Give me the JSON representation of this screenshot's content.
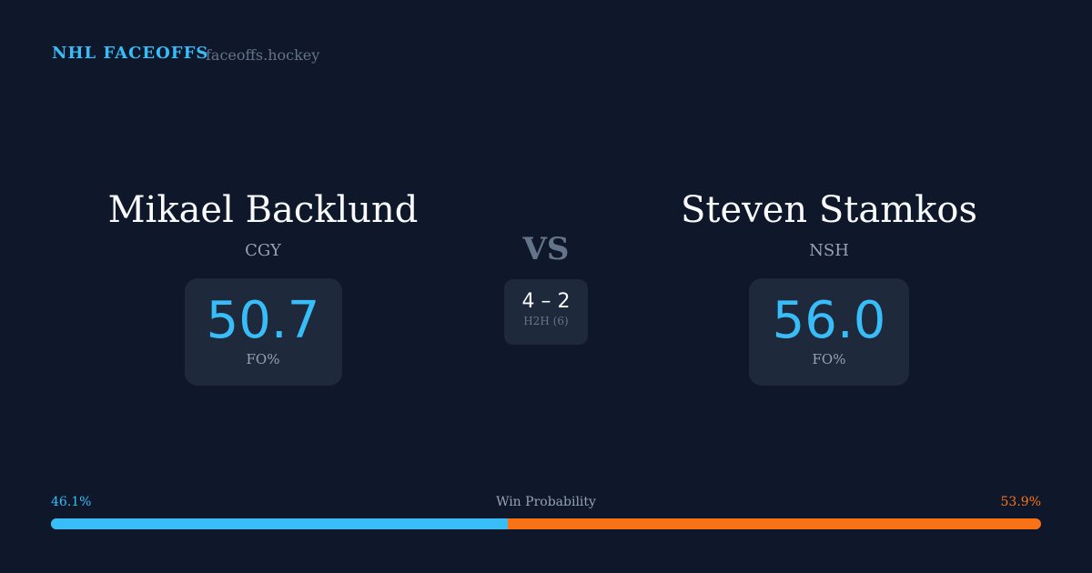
{
  "header": {
    "brand": "NHL FACEOFFS",
    "site": "faceoffs.hockey"
  },
  "left": {
    "name": "Mikael Backlund",
    "team": "CGY",
    "fo_pct": "50.7",
    "fo_label": "FO%"
  },
  "right": {
    "name": "Steven Stamkos",
    "team": "NSH",
    "fo_pct": "56.0",
    "fo_label": "FO%"
  },
  "vs": "VS",
  "h2h": {
    "score": "4 – 2",
    "label": "H2H (6)"
  },
  "win": {
    "label": "Win Probability",
    "left": "46.1%",
    "right": "53.9%",
    "left_value": 46.1,
    "colors": {
      "left": "#38bdf8",
      "right": "#f97316"
    }
  }
}
